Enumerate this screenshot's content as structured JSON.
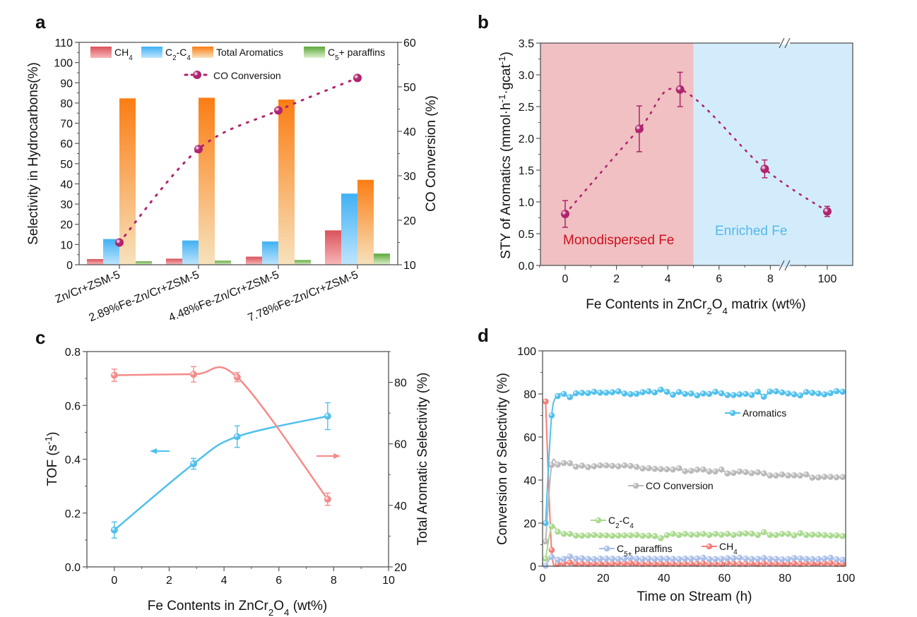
{
  "figure": {
    "panels": [
      "a",
      "b",
      "c",
      "d"
    ]
  },
  "chart_data": [
    {
      "id": "a",
      "type": "bar",
      "panel_label": "a",
      "categories": [
        "Zn/Cr+ZSM-5",
        "2.89%Fe-Zn/Cr+ZSM-5",
        "4.48%Fe-Zn/Cr+ZSM-5",
        "7.78%Fe-Zn/Cr+ZSM-5"
      ],
      "series": [
        {
          "name": "CH4",
          "label_main": "CH",
          "label_sub": "4",
          "color_top": "#d9535a",
          "color_bottom": "#f8b6b8",
          "values": [
            2.8,
            3.0,
            4.0,
            17.0
          ]
        },
        {
          "name": "C2-C4",
          "label_main": "C",
          "label_sub": "2",
          "label_mid": "-C",
          "label_sub2": "4",
          "color_top": "#40b1f5",
          "color_bottom": "#bfe5fd",
          "values": [
            12.7,
            12.0,
            11.5,
            35.2
          ]
        },
        {
          "name": "Total Aromatics",
          "label_main": "Total Aromatics",
          "color_top": "#fb7d13",
          "color_bottom": "#f7e2bd",
          "values": [
            82.3,
            82.6,
            81.7,
            42.0
          ]
        },
        {
          "name": "C5+ paraffins",
          "label_main": "C",
          "label_sub": "5",
          "label_mid": "+ paraffins",
          "color_top": "#5aa83a",
          "color_bottom": "#dff0cc",
          "values": [
            1.7,
            2.0,
            2.3,
            5.5
          ]
        }
      ],
      "line_series": {
        "name": "CO Conversion",
        "color": "#b0236e",
        "values": [
          15.0,
          36.0,
          44.7,
          52.0
        ],
        "style": "dotted"
      },
      "ylabel": "Selectivity in Hydrocarbons(%)",
      "ylim": [
        0,
        110
      ],
      "yticks": [
        0,
        10,
        20,
        30,
        40,
        50,
        60,
        70,
        80,
        90,
        100,
        110
      ],
      "y2label": "CO Conversion (%)",
      "y2lim": [
        10,
        60
      ],
      "y2ticks": [
        10,
        20,
        30,
        40,
        50,
        60
      ],
      "legend_placement": "top"
    },
    {
      "id": "b",
      "type": "scatter",
      "panel_label": "b",
      "x_labels": [
        "0",
        "2",
        "4",
        "6",
        "8",
        "100"
      ],
      "x": [
        0,
        2.89,
        4.48,
        7.78,
        100
      ],
      "y": [
        0.81,
        2.15,
        2.77,
        1.52,
        0.85
      ],
      "yerr": [
        0.21,
        0.36,
        0.27,
        0.14,
        0.08
      ],
      "point_color": "#b0236e",
      "fit_line": "dotted",
      "xlabel_pre": "Fe Contents in ZnCr",
      "xlabel_sub1": "2",
      "xlabel_mid": "O",
      "xlabel_sub2": "4",
      "xlabel_post": " matrix (wt%)",
      "ylabel_pre": "STY of Aromatics (mmol·h",
      "ylabel_sup1": "-1",
      "ylabel_mid": "·gcat",
      "ylabel_sup2": "-1",
      "ylabel_post": ")",
      "ylim": [
        0,
        3.5
      ],
      "yticks": [
        "0.0",
        "0.5",
        "1.0",
        "1.5",
        "2.0",
        "2.5",
        "3.0",
        "3.5"
      ],
      "xlim": [
        -1,
        8.5
      ],
      "axis_break": "between 8 and 100",
      "regions": [
        {
          "label": "Monodispersed Fe",
          "range": [
            -1,
            5
          ],
          "fill": "#f0c0c2",
          "text_color": "#d0101e"
        },
        {
          "label": "Enriched  Fe",
          "range": [
            5,
            100
          ],
          "fill": "#d3ecfb",
          "text_color": "#54b9ec"
        }
      ]
    },
    {
      "id": "c",
      "type": "line",
      "panel_label": "c",
      "x": [
        0,
        2.89,
        4.48,
        7.78
      ],
      "series": [
        {
          "name": "TOF",
          "axis": "left",
          "color": "#4fc0ec",
          "values": [
            0.137,
            0.383,
            0.484,
            0.56
          ],
          "err": [
            0.03,
            0.02,
            0.04,
            0.05
          ],
          "arrow": "left"
        },
        {
          "name": "Total Aromatic Selectivity",
          "axis": "right",
          "color": "#f48c8a",
          "values": [
            82.3,
            82.6,
            81.7,
            42.0
          ],
          "err": [
            2.0,
            2.5,
            1.5,
            2.0
          ],
          "arrow": "right"
        }
      ],
      "xlabel_pre": "Fe Contents in ZnCr",
      "xlabel_sub1": "2",
      "xlabel_mid": "O",
      "xlabel_sub2": "4",
      "xlabel_post": " (wt%)",
      "ylabel_pre": "TOF (s",
      "ylabel_sup": "-1",
      "ylabel_post": ")",
      "y2label": "Total Aromatic Selectivity (%)",
      "xlim": [
        -1,
        10
      ],
      "xticks": [
        0,
        2,
        4,
        6,
        8,
        10
      ],
      "ylim": [
        0,
        0.8
      ],
      "yticks": [
        "0.0",
        "0.2",
        "0.4",
        "0.6",
        "0.8"
      ],
      "y2lim": [
        20,
        90
      ],
      "y2ticks": [
        20,
        40,
        60,
        80
      ]
    },
    {
      "id": "d",
      "type": "line",
      "panel_label": "d",
      "x": [
        1,
        3,
        5,
        7,
        9,
        11,
        13,
        15,
        17,
        19,
        21,
        23,
        25,
        27,
        29,
        31,
        33,
        35,
        37,
        39,
        41,
        43,
        45,
        47,
        49,
        51,
        53,
        55,
        57,
        59,
        61,
        63,
        65,
        67,
        69,
        71,
        73,
        75,
        77,
        79,
        81,
        83,
        85,
        87,
        89,
        91,
        93,
        95,
        97,
        99
      ],
      "series": [
        {
          "name": "Aromatics",
          "color": "#4fc0ec",
          "values": [
            20,
            70,
            79,
            80,
            78.5,
            80.3,
            80.5,
            80.4,
            81,
            80.6,
            80.6,
            80.8,
            81.2,
            80.2,
            79.9,
            80.1,
            80.8,
            81.2,
            80.7,
            82,
            81,
            79.6,
            80.9,
            80,
            80.2,
            79.3,
            80.2,
            80,
            81,
            80.3,
            79.5,
            79.5,
            79.8,
            80,
            79.5,
            81,
            78.7,
            81.1,
            81.2,
            80.7,
            80.2,
            79.8,
            79.3,
            80.9,
            80.5,
            80.2,
            79.8,
            80.4,
            81.3,
            81
          ]
        },
        {
          "name": "CO Conversion",
          "color": "#b9b9b9",
          "values": [
            11.5,
            47,
            47.2,
            47.9,
            47.8,
            46.2,
            46.7,
            46,
            46.4,
            46.8,
            46.8,
            46.6,
            46.4,
            46.8,
            46.6,
            46.1,
            45.4,
            45.5,
            45.2,
            45.1,
            45,
            44.9,
            45.5,
            44.1,
            44.3,
            44.8,
            44.9,
            44,
            44,
            44.9,
            43.1,
            43.3,
            44,
            43.7,
            43.2,
            43.6,
            43.1,
            42.1,
            42.1,
            42.6,
            42.1,
            42.2,
            42.1,
            42.6,
            41.1,
            41.2,
            41.5,
            41.5,
            41.3,
            41.4
          ]
        },
        {
          "name": "C2-C4",
          "color": "#a9d98e",
          "values": [
            3.5,
            18.5,
            16,
            15,
            15,
            14.2,
            14.2,
            14.3,
            14.5,
            14.3,
            14.3,
            14.1,
            14.2,
            14.3,
            14.3,
            14.5,
            14.1,
            14.2,
            14,
            13,
            14.4,
            15,
            14.5,
            15,
            14.6,
            14.7,
            15,
            14.5,
            15,
            14.6,
            15,
            14.5,
            15,
            15.2,
            15.1,
            14.5,
            15.8,
            14.5,
            14.5,
            15,
            15,
            14.3,
            15.3,
            14.5,
            14.6,
            14.6,
            14.4,
            14.2,
            14.3,
            14
          ]
        },
        {
          "name": "C5+ paraffins",
          "color": "#a8bde8",
          "values": [
            0.2,
            4.3,
            3,
            3.4,
            4.5,
            3.5,
            3.7,
            3.4,
            3.3,
            3.5,
            3.5,
            3.5,
            3.4,
            3.5,
            3.9,
            3.5,
            3.4,
            3.5,
            3.4,
            3.5,
            3.5,
            3.4,
            3.3,
            3.5,
            3.5,
            3.6,
            3.9,
            3.3,
            3.3,
            3.4,
            3.7,
            3.7,
            3.9,
            3.5,
            3.4,
            3.4,
            3.8,
            3.4,
            3.4,
            3.2,
            3.3,
            3.8,
            3.6,
            3.4,
            3.3,
            3.3,
            3.5,
            3.9,
            3.2,
            3
          ]
        },
        {
          "name": "CH4",
          "color": "#f47e77",
          "values": [
            76.5,
            7.5,
            1,
            1.3,
            1.7,
            1.1,
            1.1,
            1,
            1.2,
            1.1,
            1,
            1.1,
            1.4,
            1.2,
            1.5,
            1.2,
            1,
            1.1,
            1,
            1.1,
            1,
            1.1,
            1,
            1.1,
            1.1,
            1,
            1.3,
            1,
            1.1,
            1,
            1.4,
            1.2,
            1,
            1,
            1.2,
            1,
            1.3,
            1.1,
            1.1,
            1,
            1,
            1.3,
            1,
            1.4,
            1.2,
            1.3,
            1.2,
            1.5,
            1,
            1
          ]
        }
      ],
      "legend_labels": {
        "Aromatics": "Aromatics",
        "CO Conversion": "CO Conversion",
        "C2-C4_main": "C",
        "C2-C4_sub1": "2",
        "C2-C4_mid": "-C",
        "C2-C4_sub2": "4",
        "C5_main": "C",
        "C5_sub": "5+",
        "C5_post": " paraffins",
        "CH4_main": "CH",
        "CH4_sub": "4"
      },
      "xlabel": "Time on Stream (h)",
      "ylabel": "Conversion or Selectivity (%)",
      "xlim": [
        0,
        100
      ],
      "xticks": [
        0,
        20,
        40,
        60,
        80,
        100
      ],
      "ylim": [
        0,
        100
      ],
      "yticks": [
        0,
        20,
        40,
        60,
        80,
        100
      ]
    }
  ]
}
